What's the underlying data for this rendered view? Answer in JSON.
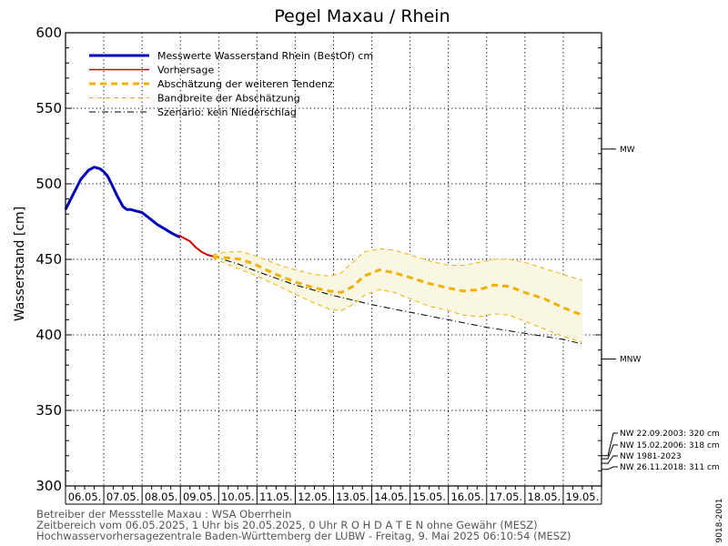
{
  "chart_data": {
    "type": "line",
    "title": "Pegel Maxau / Rhein",
    "ylabel": "Wasserstand [cm]",
    "ylim": [
      300,
      600
    ],
    "yticks": [
      300,
      350,
      400,
      450,
      500,
      550,
      600
    ],
    "xlim_days": [
      6,
      20
    ],
    "date_labels": [
      "06.05.",
      "07.05.",
      "08.05.",
      "09.05.",
      "10.05.",
      "11.05.",
      "12.05.",
      "13.05.",
      "14.05.",
      "15.05.",
      "16.05.",
      "17.05.",
      "18.05.",
      "19.05."
    ],
    "grid": true,
    "legend_position": "top-left",
    "legend": [
      {
        "label": "Messwerte Wasserstand Rhein (BestOf)   cm",
        "style": "thick-solid",
        "color": "#0000bb"
      },
      {
        "label": "Vorhersage",
        "style": "solid",
        "color": "#cc0000"
      },
      {
        "label": "Abschätzung der weiteren Tendenz",
        "style": "thick-dashed",
        "color": "#f2b000"
      },
      {
        "label": "Bandbreite der Abschätzung",
        "style": "thin-dashed",
        "color": "#f2b000"
      },
      {
        "label": "Szenario: kein Niederschlag",
        "style": "dash-dot",
        "color": "#000000"
      }
    ],
    "series": [
      {
        "name": "Messwerte Wasserstand Rhein (BestOf)   cm",
        "color": "#0000bb",
        "x": [
          6.0,
          6.2,
          6.4,
          6.6,
          6.75,
          6.9,
          7.0,
          7.1,
          7.2,
          7.35,
          7.5,
          7.6,
          7.7,
          7.85,
          8.0,
          8.2,
          8.4,
          8.6,
          8.8,
          8.95,
          9.0
        ],
        "y": [
          483,
          493,
          503,
          509,
          511,
          510,
          508,
          505,
          500,
          492,
          485,
          483,
          483,
          482,
          481,
          477,
          473,
          470,
          467,
          465,
          465
        ]
      },
      {
        "name": "Vorhersage",
        "color": "#cc0000",
        "x": [
          8.95,
          9.1,
          9.25,
          9.4,
          9.55,
          9.7,
          9.85
        ],
        "y": [
          466,
          464,
          462,
          458,
          455,
          453,
          452
        ]
      },
      {
        "name": "Abschätzung der weiteren Tendenz",
        "color": "#f2b000",
        "x": [
          9.85,
          10.2,
          10.6,
          11.0,
          11.5,
          12.0,
          12.5,
          12.9,
          13.2,
          13.5,
          13.8,
          14.2,
          14.6,
          15.0,
          15.5,
          16.0,
          16.4,
          16.8,
          17.2,
          17.6,
          18.0,
          18.5,
          19.0,
          19.5
        ],
        "y": [
          452,
          451,
          450,
          446,
          440,
          435,
          431,
          429,
          428,
          432,
          439,
          443,
          441,
          438,
          434,
          431,
          429,
          430,
          433,
          432,
          428,
          424,
          418,
          413
        ]
      },
      {
        "name": "Bandbreite der Abschätzung (oben)",
        "color": "#f2b000",
        "x": [
          9.85,
          10.2,
          10.6,
          11.0,
          11.5,
          12.0,
          12.5,
          12.9,
          13.2,
          13.5,
          13.8,
          14.2,
          14.6,
          15.0,
          15.5,
          16.0,
          16.4,
          16.8,
          17.2,
          17.6,
          18.0,
          18.5,
          19.0,
          19.5
        ],
        "y": [
          453,
          455,
          455,
          452,
          447,
          443,
          440,
          439,
          441,
          448,
          455,
          457,
          456,
          453,
          449,
          446,
          446,
          448,
          450,
          450,
          448,
          444,
          440,
          436
        ]
      },
      {
        "name": "Bandbreite der Abschätzung (unten)",
        "color": "#f2b000",
        "x": [
          9.85,
          10.2,
          10.6,
          11.0,
          11.5,
          12.0,
          12.5,
          12.9,
          13.2,
          13.5,
          13.8,
          14.2,
          14.6,
          15.0,
          15.5,
          16.0,
          16.4,
          16.8,
          17.2,
          17.6,
          18.0,
          18.5,
          19.0,
          19.5
        ],
        "y": [
          451,
          447,
          443,
          439,
          433,
          427,
          421,
          417,
          416,
          420,
          426,
          430,
          428,
          424,
          419,
          416,
          413,
          412,
          414,
          413,
          409,
          404,
          399,
          395
        ]
      },
      {
        "name": "Szenario: kein Niederschlag",
        "color": "#000000",
        "x": [
          9.85,
          10.5,
          11.0,
          12.0,
          13.0,
          14.0,
          15.0,
          16.0,
          17.0,
          18.0,
          19.0,
          19.5
        ],
        "y": [
          452,
          447,
          442,
          433,
          426,
          420,
          415,
          410,
          405,
          401,
          397,
          394
        ]
      }
    ],
    "reference_lines": [
      {
        "label": "MW",
        "value": 523
      },
      {
        "label": "MNW",
        "value": 384
      }
    ],
    "low_water_records": [
      {
        "label": "NW 22.09.2003: 320 cm",
        "value": 320
      },
      {
        "label": "NW 15.02.2006: 318 cm",
        "value": 318
      },
      {
        "label": "NW 1981-2023",
        "value": 315
      },
      {
        "label": "NW 26.11.2018: 311 cm",
        "value": 311
      }
    ]
  },
  "footer": {
    "line1": "Betreiber der Messstelle Maxau : WSA Oberrhein",
    "line2": "Zeitbereich vom 06.05.2025, 1 Uhr bis 20.05.2025, 0 Uhr    R O H D A T E N ohne Gewähr (MESZ)",
    "line3": "Hochwasservorhersagezentrale Baden-Württemberg der LUBW - Freitag, 9. Mai 2025 06:10:54 (MESZ)"
  },
  "version_code": "9018-2001"
}
